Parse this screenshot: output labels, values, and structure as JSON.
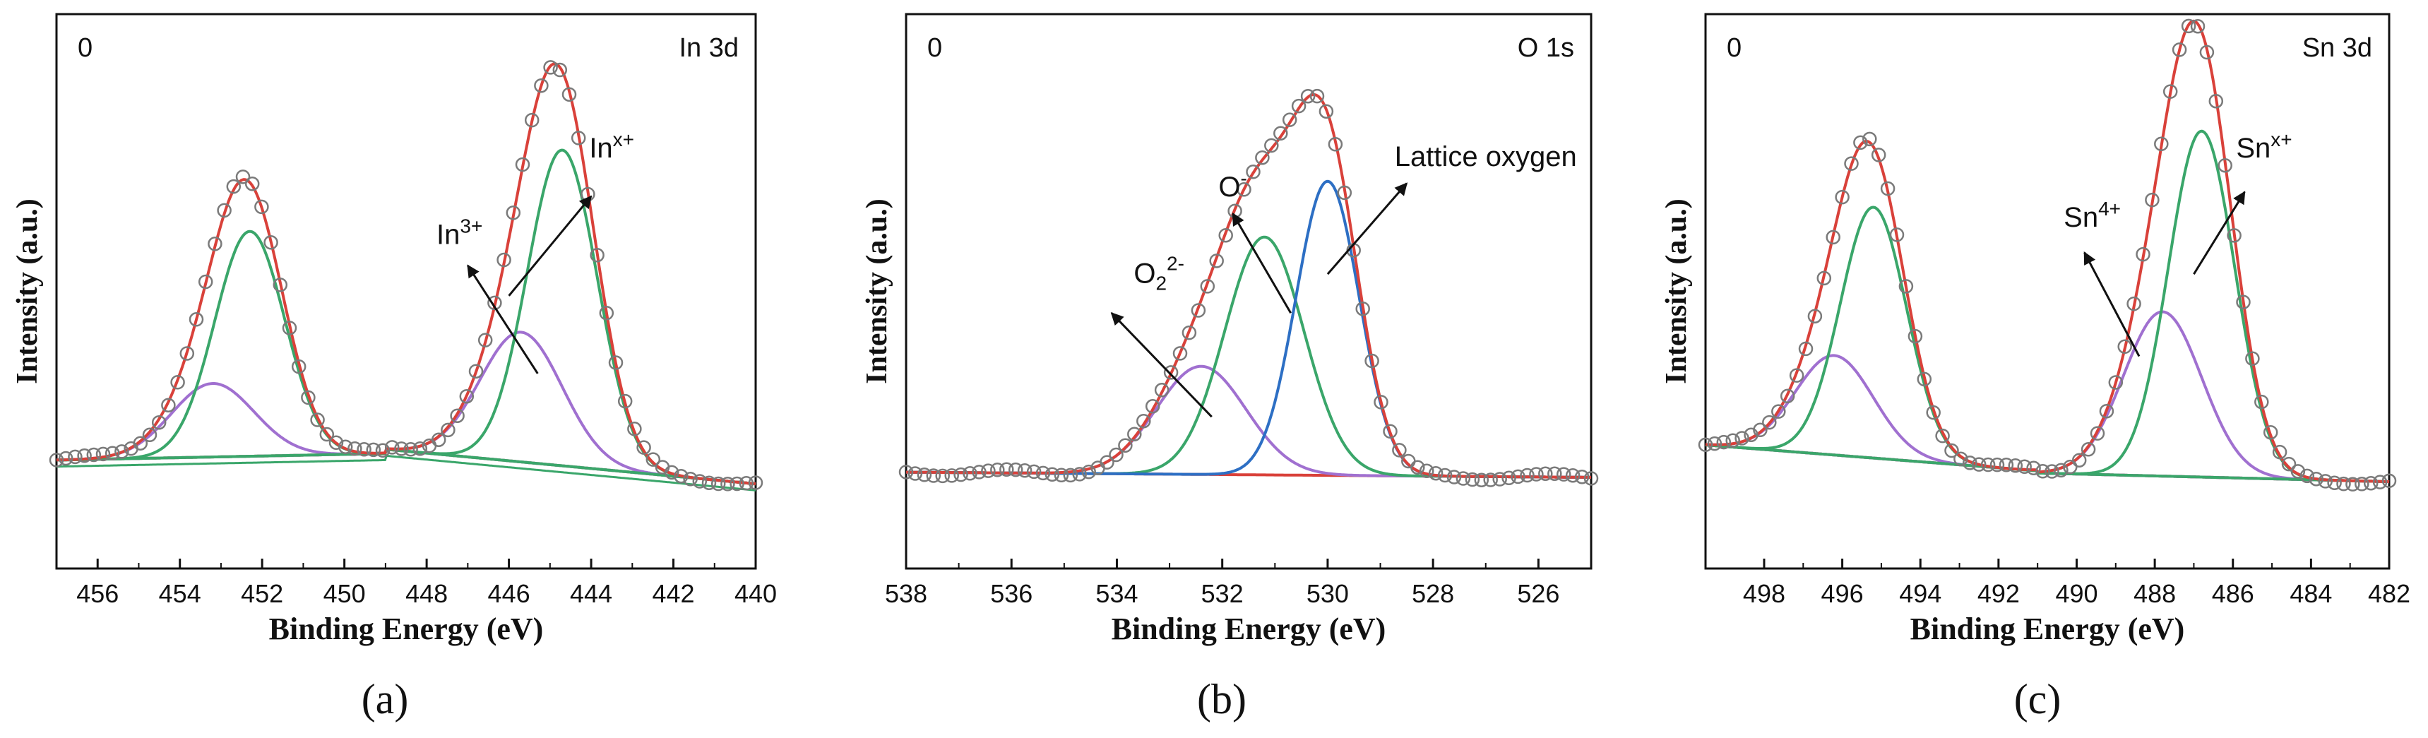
{
  "panels": [
    {
      "caption": "(a)",
      "corner_label": "0",
      "region_label": "In 3d",
      "chart_data": {
        "type": "line",
        "xlabel": "Binding Energy (eV)",
        "ylabel": "Intensity (a.u.)",
        "xlim": [
          457,
          440
        ],
        "x_reversed": true,
        "y_ticks_shown": false,
        "x_ticks": [
          456,
          454,
          452,
          450,
          448,
          446,
          444,
          442,
          440
        ],
        "peaks_in3p": [
          {
            "center": 452.3,
            "height": 0.52,
            "width": 0.85,
            "color": "#3aa66a"
          },
          {
            "center": 444.7,
            "height": 0.73,
            "width": 0.85,
            "color": "#3aa66a"
          }
        ],
        "peaks_inxp": [
          {
            "center": 453.2,
            "height": 0.17,
            "width": 1.0,
            "color": "#a070d0"
          },
          {
            "center": 445.7,
            "height": 0.3,
            "width": 1.0,
            "color": "#a070d0"
          }
        ],
        "baseline_color": "#c8a020",
        "envelope_color": "#d9413a",
        "markers_color": "#7a7a7a",
        "annotations": [
          {
            "text": "In",
            "sup": "3+",
            "x": 447.2,
            "y": 0.52,
            "arrow_from": [
              445.3,
              0.22
            ],
            "arrow_to": [
              447.0,
              0.47
            ]
          },
          {
            "text": "In",
            "sup": "x+",
            "x": 443.5,
            "y": 0.72,
            "arrow_from": [
              446.0,
              0.4
            ],
            "arrow_to": [
              444.0,
              0.63
            ]
          }
        ]
      }
    },
    {
      "caption": "(b)",
      "corner_label": "0",
      "region_label": "O 1s",
      "chart_data": {
        "type": "line",
        "xlabel": "Binding Energy (eV)",
        "ylabel": "Intensity (a.u.)",
        "xlim": [
          538,
          525
        ],
        "x_reversed": true,
        "y_ticks_shown": false,
        "x_ticks": [
          538,
          536,
          534,
          532,
          530,
          528,
          526
        ],
        "peaks": [
          {
            "name": "O2 2-",
            "center": 532.4,
            "height": 0.25,
            "width": 0.85,
            "color": "#a070d0"
          },
          {
            "name": "O-",
            "center": 531.2,
            "height": 0.55,
            "width": 0.75,
            "color": "#3aa66a"
          },
          {
            "name": "Lattice oxygen",
            "center": 530.0,
            "height": 0.68,
            "width": 0.6,
            "color": "#2d6fc4"
          }
        ],
        "baseline_color": "#d9413a",
        "envelope_color": "#d9413a",
        "markers_color": "#7a7a7a",
        "annotations": [
          {
            "text": "O",
            "sub": "2",
            "sup": "2-",
            "x": 533.2,
            "y": 0.43,
            "arrow_from": [
              532.2,
              0.12
            ],
            "arrow_to": [
              534.1,
              0.36
            ]
          },
          {
            "text": "O",
            "sup": "-",
            "x": 531.8,
            "y": 0.63,
            "arrow_from": [
              530.7,
              0.36
            ],
            "arrow_to": [
              531.8,
              0.59
            ]
          },
          {
            "text": "Lattice oxygen",
            "x": 527.0,
            "y": 0.7,
            "arrow_from": [
              530.0,
              0.45
            ],
            "arrow_to": [
              528.5,
              0.66
            ]
          }
        ]
      }
    },
    {
      "caption": "(c)",
      "corner_label": "0",
      "region_label": "Sn 3d",
      "chart_data": {
        "type": "line",
        "xlabel": "Binding Energy (eV)",
        "ylabel": "Intensity (a.u.)",
        "xlim": [
          499.5,
          482
        ],
        "x_reversed": true,
        "y_ticks_shown": false,
        "x_ticks": [
          498,
          496,
          494,
          492,
          490,
          488,
          486,
          484,
          482
        ],
        "peaks_sn4p": [
          {
            "center": 495.2,
            "height": 0.58,
            "width": 0.85,
            "color": "#3aa66a"
          },
          {
            "center": 486.8,
            "height": 0.8,
            "width": 0.85,
            "color": "#3aa66a"
          }
        ],
        "peaks_snxp": [
          {
            "center": 496.2,
            "height": 0.23,
            "width": 1.0,
            "color": "#a070d0"
          },
          {
            "center": 487.8,
            "height": 0.38,
            "width": 1.0,
            "color": "#a070d0"
          }
        ],
        "baseline_color": "#d9413a",
        "envelope_color": "#d9413a",
        "markers_color": "#7a7a7a",
        "annotations": [
          {
            "text": "Sn",
            "sup": "4+",
            "x": 489.6,
            "y": 0.56,
            "arrow_from": [
              488.4,
              0.26
            ],
            "arrow_to": [
              489.8,
              0.5
            ]
          },
          {
            "text": "Sn",
            "sup": "x+",
            "x": 485.2,
            "y": 0.72,
            "arrow_from": [
              487.0,
              0.45
            ],
            "arrow_to": [
              485.7,
              0.64
            ]
          }
        ]
      }
    }
  ]
}
